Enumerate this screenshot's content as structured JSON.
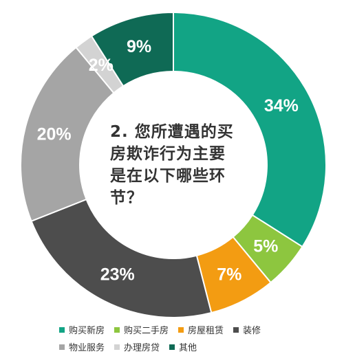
{
  "chart_data": {
    "type": "pie",
    "donut": true,
    "title": "2. 您所遭遇的买房欺诈行为主要是在以下哪些环节？",
    "title_lines": [
      "2. 您所遭遇的买",
      "房欺诈行为主要",
      "是在以下哪些环",
      "节？"
    ],
    "categories": [
      "购买新房",
      "购买二手房",
      "房屋租赁",
      "装修",
      "物业服务",
      "办理房贷",
      "其他"
    ],
    "values": [
      34,
      5,
      7,
      23,
      20,
      2,
      9
    ],
    "value_labels": [
      "34%",
      "5%",
      "7%",
      "23%",
      "20%",
      "2%",
      "9%"
    ],
    "colors": [
      "#12a485",
      "#8dc63f",
      "#f39c12",
      "#4d4d4d",
      "#a5a5a5",
      "#d3d3d3",
      "#0f6a55"
    ],
    "legend_position": "bottom"
  }
}
